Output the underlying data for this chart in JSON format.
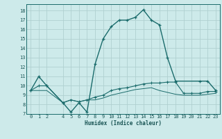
{
  "xlabel": "Humidex (Indice chaleur)",
  "bg_color": "#cdeaea",
  "line_color": "#1a6b6b",
  "grid_color": "#b0d0d0",
  "xlim": [
    -0.5,
    23.5
  ],
  "ylim": [
    7,
    18.7
  ],
  "xticks": [
    0,
    1,
    2,
    4,
    5,
    6,
    7,
    8,
    9,
    10,
    11,
    12,
    13,
    14,
    15,
    16,
    17,
    18,
    19,
    20,
    21,
    22,
    23
  ],
  "yticks": [
    7,
    8,
    9,
    10,
    11,
    12,
    13,
    14,
    15,
    16,
    17,
    18
  ],
  "line1_x": [
    0,
    1,
    2,
    4,
    5,
    6,
    7,
    8,
    9,
    10,
    11,
    12,
    13,
    14,
    15,
    16,
    17,
    18,
    21,
    22,
    23
  ],
  "line1_y": [
    9.5,
    11,
    10,
    8.2,
    7.2,
    8.2,
    7.2,
    12.3,
    15,
    16.3,
    17,
    17,
    17.3,
    18.1,
    17,
    16.5,
    13,
    10.5,
    10.5,
    10.5,
    9.5
  ],
  "line2_x": [
    0,
    1,
    2,
    4,
    5,
    6,
    7,
    8,
    9,
    10,
    11,
    12,
    13,
    14,
    15,
    16,
    17,
    18,
    19,
    20,
    21,
    22,
    23
  ],
  "line2_y": [
    9.5,
    10,
    10,
    8.2,
    8.5,
    8.3,
    8.5,
    8.8,
    9.0,
    9.5,
    9.7,
    9.8,
    10.0,
    10.2,
    10.3,
    10.3,
    10.4,
    10.4,
    9.2,
    9.2,
    9.2,
    9.4,
    9.4
  ],
  "line3_x": [
    0,
    1,
    2,
    4,
    5,
    6,
    7,
    8,
    9,
    10,
    11,
    12,
    13,
    14,
    15,
    16,
    17,
    18,
    19,
    20,
    21,
    22,
    23
  ],
  "line3_y": [
    9.5,
    9.5,
    9.5,
    8.2,
    8.5,
    8.3,
    8.5,
    8.5,
    8.7,
    9.0,
    9.2,
    9.4,
    9.6,
    9.7,
    9.8,
    9.5,
    9.3,
    9.1,
    9.0,
    9.0,
    9.0,
    9.1,
    9.2
  ]
}
